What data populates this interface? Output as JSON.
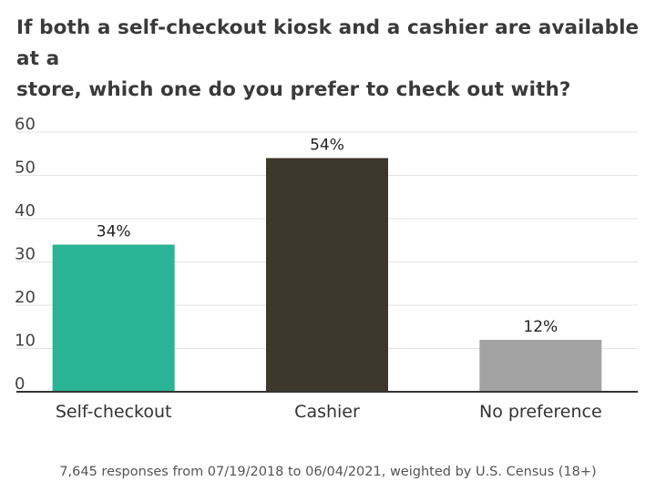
{
  "title_line1": "If both a self-checkout kiosk and a cashier are available at a",
  "title_line2": "store, which one do you prefer to check out with?",
  "footnote": "7,645 responses from 07/19/2018 to 06/04/2021, weighted by U.S. Census (18+)",
  "chart_data": {
    "type": "bar",
    "title": "If both a self-checkout kiosk and a cashier are available at a store, which one do you prefer to check out with?",
    "categories": [
      "Self-checkout",
      "Cashier",
      "No preference"
    ],
    "values": [
      34,
      54,
      12
    ],
    "data_labels": [
      "34%",
      "54%",
      "12%"
    ],
    "colors": [
      "#2ab394",
      "#3d372c",
      "#a3a3a3"
    ],
    "ylim": [
      0,
      60
    ],
    "yticks": [
      0,
      10,
      20,
      30,
      40,
      50,
      60
    ],
    "xlabel": "",
    "ylabel": "",
    "grid": true
  }
}
